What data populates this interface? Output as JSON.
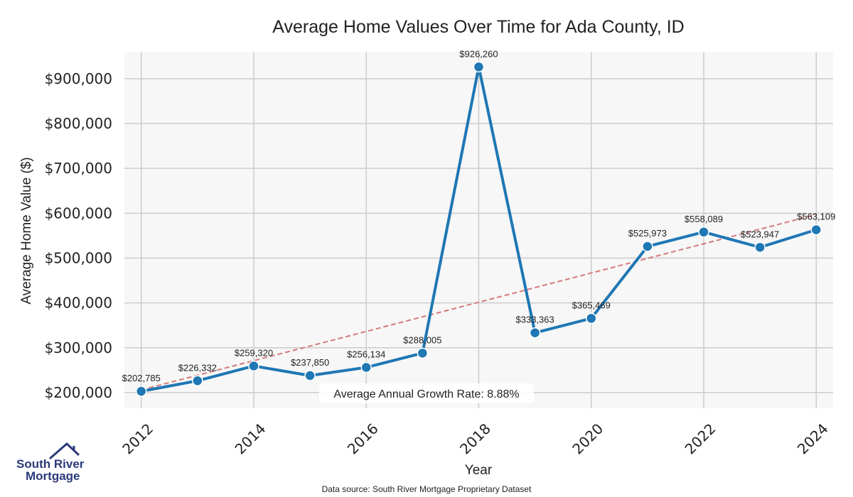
{
  "chart_data": {
    "type": "line",
    "title": "Average Home Values Over Time for Ada County, ID",
    "xlabel": "Year",
    "ylabel": "Average Home Value ($)",
    "x": [
      2012,
      2013,
      2014,
      2015,
      2016,
      2017,
      2018,
      2019,
      2020,
      2021,
      2022,
      2023,
      2024
    ],
    "values": [
      202785,
      226332,
      259320,
      237850,
      256134,
      288005,
      926260,
      333363,
      365469,
      525973,
      558089,
      523947,
      563109
    ],
    "data_labels": [
      "$202,785",
      "$226,332",
      "$259,320",
      "$237,850",
      "$256,134",
      "$288,005",
      "$926,260",
      "$333,363",
      "$365,469",
      "$525,973",
      "$558,089",
      "$523,947",
      "$563,109"
    ],
    "x_ticks": [
      "2012",
      "2014",
      "2016",
      "2018",
      "2020",
      "2022",
      "2024"
    ],
    "y_ticks": [
      "$200,000",
      "$300,000",
      "$400,000",
      "$500,000",
      "$600,000",
      "$700,000",
      "$800,000",
      "$900,000"
    ],
    "y_tick_values": [
      200000,
      300000,
      400000,
      500000,
      600000,
      700000,
      800000,
      900000
    ],
    "xlim": [
      2011.7,
      2024.3
    ],
    "ylim": [
      165000,
      960000
    ],
    "trend_line": {
      "start_value": 206000,
      "end_value": 597000,
      "style": "dashed"
    },
    "annotation": "Average Annual Growth Rate: 8.88%",
    "source": "Data source: South River Mortgage Proprietary Dataset",
    "grid": true,
    "colors": {
      "line": "#1f77b4",
      "trend": "#d47a7a",
      "plot_bg": "#f7f7f7",
      "grid": "#cccccc",
      "logo": "#2b3a7a"
    }
  },
  "logo": {
    "line1": "South River",
    "line2": "Mortgage",
    "icon": "house-roof-icon"
  }
}
